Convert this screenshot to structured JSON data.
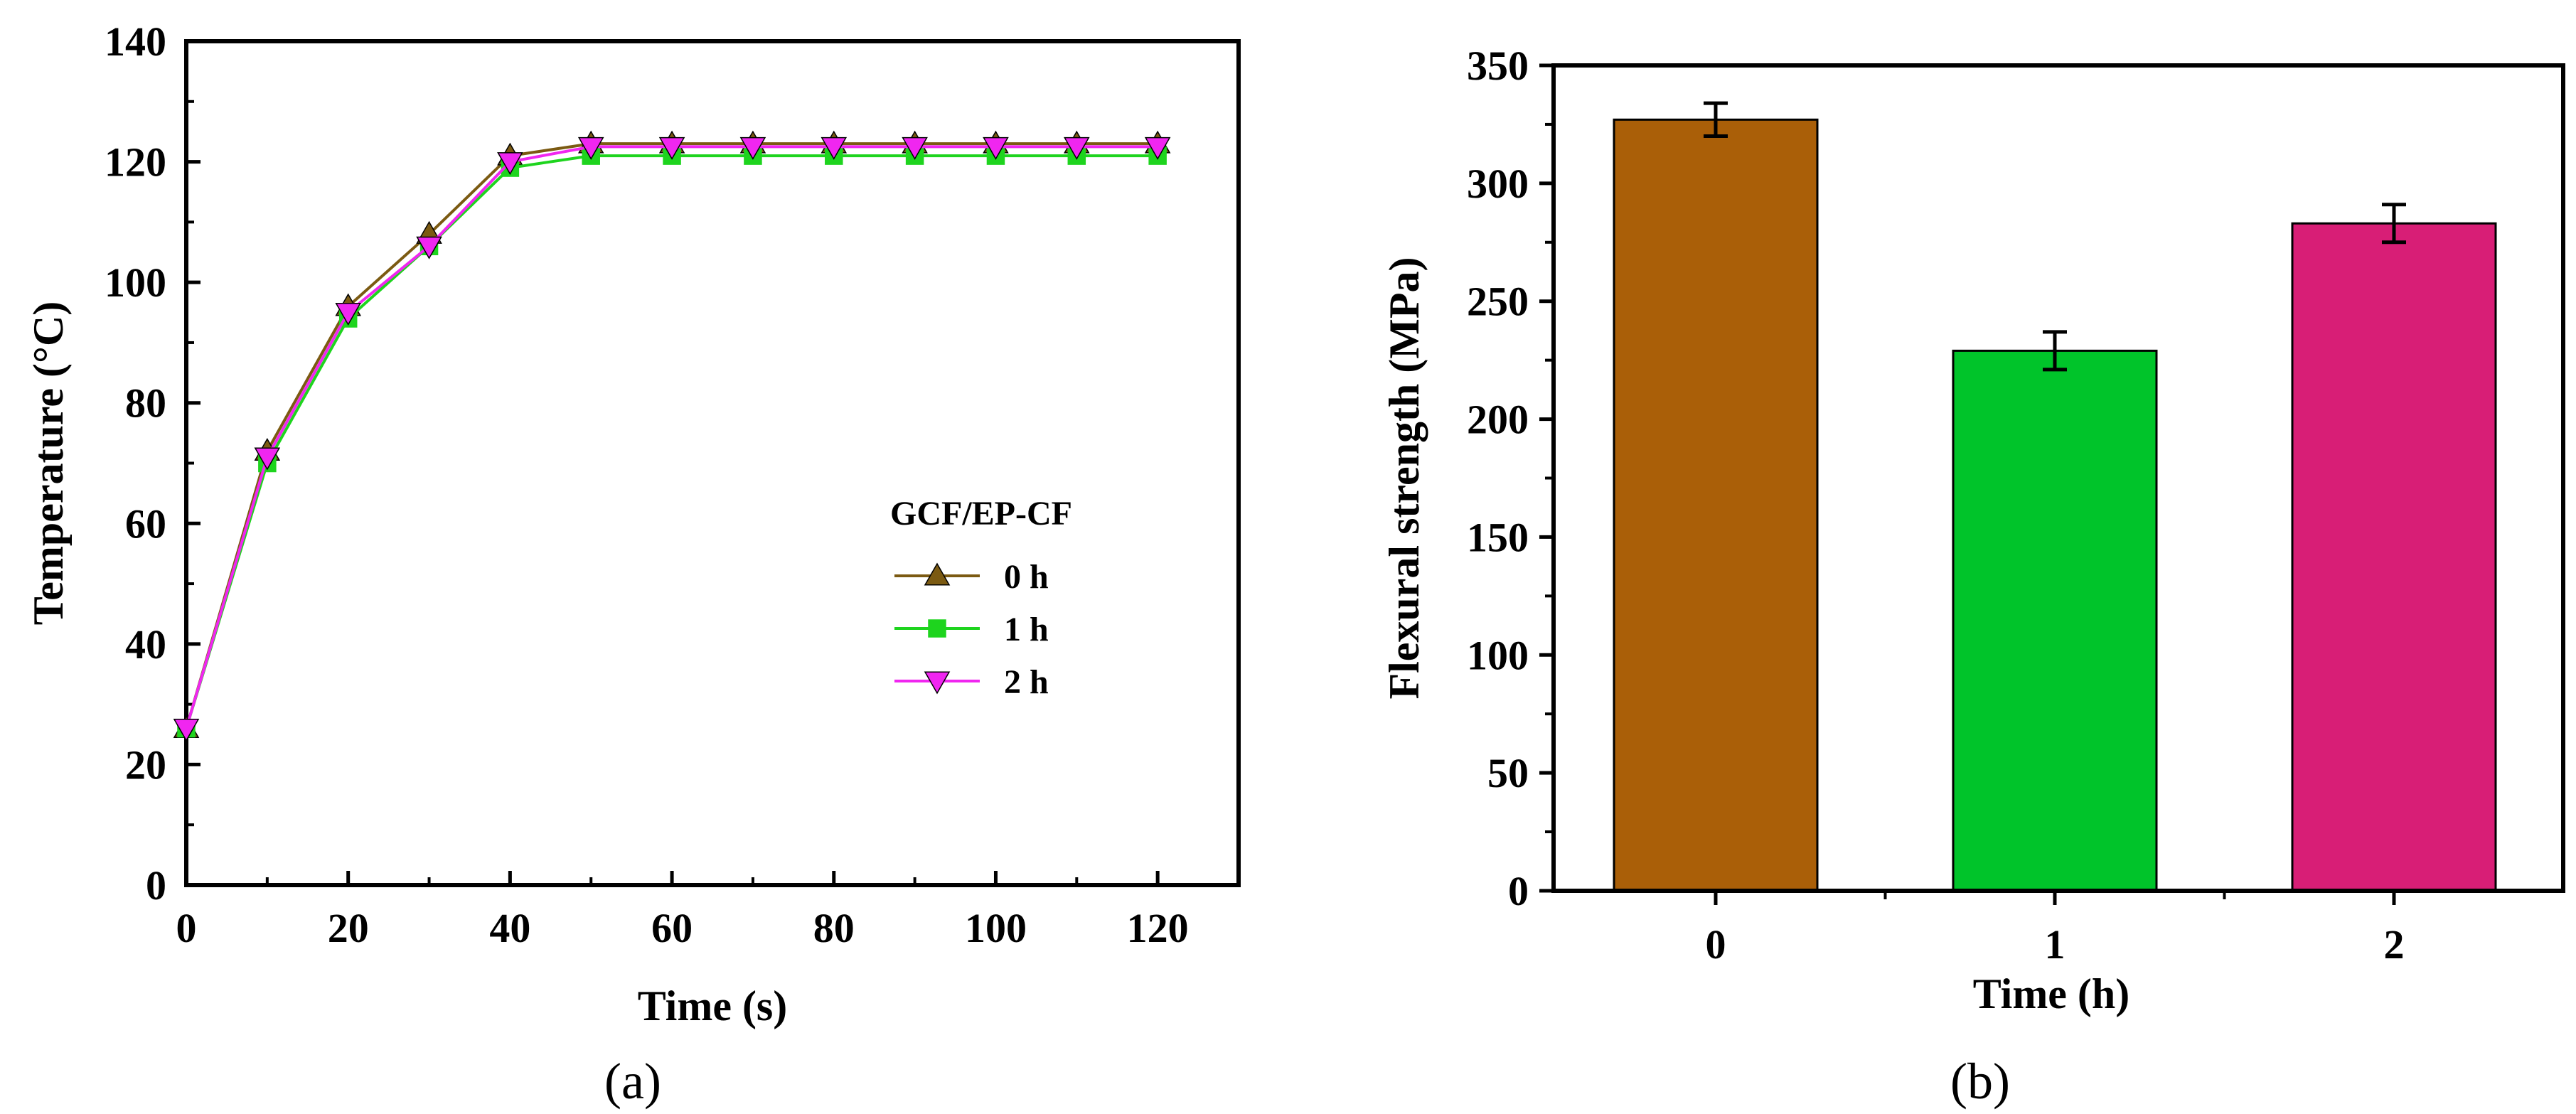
{
  "chart_data": [
    {
      "panel_label": "(a)",
      "type": "line",
      "xlabel": "Time (s)",
      "ylabel": "Temperature (°C)",
      "xlim": [
        0,
        130
      ],
      "ylim": [
        0,
        140
      ],
      "xticks": [
        "0",
        "20",
        "40",
        "60",
        "80",
        "100",
        "120"
      ],
      "yticks": [
        "0",
        "20",
        "40",
        "60",
        "80",
        "100",
        "120",
        "140"
      ],
      "legend_title": "GCF/EP-CF",
      "x": [
        0,
        10,
        20,
        30,
        40,
        50,
        60,
        70,
        80,
        90,
        100,
        110,
        120
      ],
      "series": [
        {
          "name": "0 h",
          "color": "#7B5A12",
          "marker": "triangle-up",
          "values": [
            26,
            72,
            96,
            108,
            121,
            123,
            123,
            123,
            123,
            123,
            123,
            123,
            123
          ]
        },
        {
          "name": "1 h",
          "color": "#1ED41E",
          "marker": "square",
          "values": [
            26,
            70,
            94,
            106,
            119,
            121,
            121,
            121,
            121,
            121,
            121,
            121,
            121
          ]
        },
        {
          "name": "2 h",
          "color": "#F026F0",
          "marker": "triangle-down",
          "values": [
            26,
            71,
            95,
            106,
            120,
            122.5,
            122.5,
            122.5,
            122.5,
            122.5,
            122.5,
            122.5,
            122.5
          ]
        }
      ]
    },
    {
      "panel_label": "(b)",
      "type": "bar",
      "xlabel": "Time (h)",
      "ylabel": "Flexural strength (MPa)",
      "ylim": [
        0,
        350
      ],
      "yticks": [
        "0",
        "50",
        "100",
        "150",
        "200",
        "250",
        "300",
        "350"
      ],
      "categories": [
        "0",
        "1",
        "2"
      ],
      "values": [
        327,
        229,
        283
      ],
      "errors": [
        7,
        8,
        8
      ],
      "colors": [
        "#AA5F08",
        "#00C42A",
        "#D81E76"
      ]
    }
  ]
}
